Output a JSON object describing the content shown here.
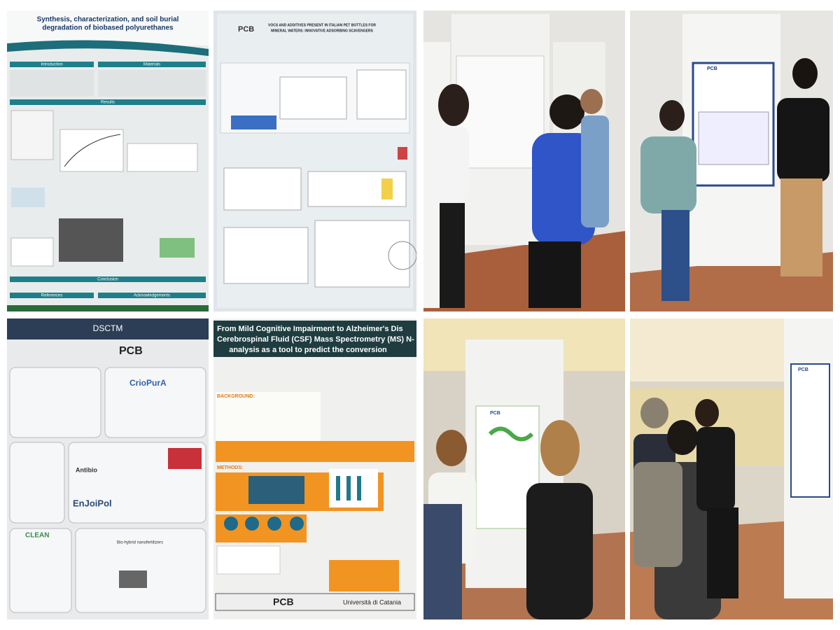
{
  "tiles": [
    {
      "title_lines": [
        "Synthesis, characterization, and soil burial",
        "degradation of biobased polyurethanes"
      ],
      "sections": [
        "Introduction",
        "Materials",
        "Results",
        "Conclusion",
        "References",
        "Acknowledgements"
      ]
    },
    {
      "logo": "PCB",
      "title_lines": [
        "VOCS AND ADDITIVES PRESENT IN ITALIAN PET BOTTLES FOR",
        "MINERAL WATERS: INNOVATIVE ADSORBING SCAVENGERS"
      ]
    },
    {},
    {
      "logo": "PCB"
    },
    {
      "header": "DSCTM",
      "logo": "PCB",
      "projects": [
        "CrioPurA",
        "Antibio",
        "EnJoiPol",
        "CLEAN",
        "Bio-hybrid nanofertilizers"
      ]
    },
    {
      "title_lines": [
        "From Mild Cognitive Impairment to Alzheimer's Dis",
        "Cerebrospinal Fluid (CSF) Mass Spectrometry (MS) N-",
        "analysis as a tool to predict the conversion"
      ],
      "sections": [
        "BACKGROUND:",
        "METHODS:"
      ],
      "logo": "PCB",
      "university": "Università di Catania"
    },
    {
      "logo": "PCB"
    },
    {
      "logo": "PCB"
    }
  ]
}
